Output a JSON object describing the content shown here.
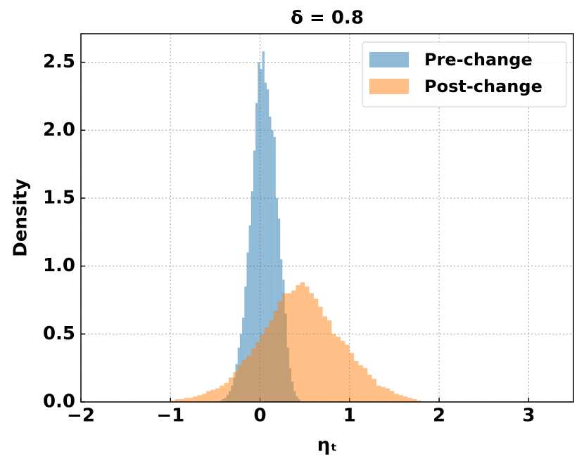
{
  "chart_data": {
    "type": "histogram",
    "title": "δ = 0.8",
    "x_label": "ηₜ",
    "y_label": "Density",
    "xlim": [
      -2,
      3.5
    ],
    "ylim": [
      0,
      2.71
    ],
    "xticks": [
      {
        "value": -2,
        "label": "−2"
      },
      {
        "value": -1,
        "label": "−1"
      },
      0,
      1,
      2,
      3
    ],
    "yticks": [
      {
        "value": 0,
        "label": "0.0"
      },
      {
        "value": 0.5,
        "label": "0.5"
      },
      {
        "value": 1,
        "label": "1.0"
      },
      {
        "value": 1.5,
        "label": "1.5"
      },
      {
        "value": 2,
        "label": "2.0"
      },
      {
        "value": 2.5,
        "label": "2.5"
      }
    ],
    "grid": true,
    "legend": "upper right",
    "series": [
      {
        "name": "Pre-change",
        "color": "#1f77b4",
        "bins": [
          -0.45,
          -0.425,
          -0.4,
          -0.375,
          -0.35,
          -0.325,
          -0.3,
          -0.275,
          -0.25,
          -0.225,
          -0.2,
          -0.175,
          -0.15,
          -0.125,
          -0.1,
          -0.075,
          -0.05,
          -0.025,
          0,
          0.025,
          0.05,
          0.075,
          0.1,
          0.125,
          0.15,
          0.175,
          0.2,
          0.225,
          0.25,
          0.275,
          0.3,
          0.325,
          0.35,
          0.375,
          0.4,
          0.425,
          0.45
        ],
        "values": [
          0.01,
          0.02,
          0.03,
          0.05,
          0.08,
          0.12,
          0.18,
          0.28,
          0.4,
          0.5,
          0.62,
          0.85,
          1.1,
          1.3,
          1.55,
          1.85,
          2.2,
          2.5,
          2.45,
          2.58,
          2.35,
          2.3,
          2.1,
          2.0,
          1.95,
          1.5,
          1.35,
          1.05,
          0.9,
          0.65,
          0.4,
          0.25,
          0.15,
          0.08,
          0.04,
          0.02
        ]
      },
      {
        "name": "Post-change",
        "color": "#ff7f0e",
        "bins": [
          -1.0,
          -0.95,
          -0.9,
          -0.85,
          -0.8,
          -0.75,
          -0.7,
          -0.65,
          -0.6,
          -0.55,
          -0.5,
          -0.45,
          -0.4,
          -0.35,
          -0.3,
          -0.25,
          -0.2,
          -0.15,
          -0.1,
          -0.05,
          0,
          0.05,
          0.1,
          0.15,
          0.2,
          0.25,
          0.3,
          0.35,
          0.4,
          0.45,
          0.5,
          0.55,
          0.6,
          0.65,
          0.7,
          0.75,
          0.8,
          0.85,
          0.9,
          0.95,
          1.0,
          1.05,
          1.1,
          1.15,
          1.2,
          1.25,
          1.3,
          1.35,
          1.4,
          1.45,
          1.5,
          1.55,
          1.6,
          1.65,
          1.7,
          1.75,
          1.8
        ],
        "values": [
          0.01,
          0.02,
          0.02,
          0.03,
          0.03,
          0.04,
          0.05,
          0.06,
          0.08,
          0.09,
          0.1,
          0.12,
          0.14,
          0.18,
          0.22,
          0.27,
          0.31,
          0.34,
          0.39,
          0.44,
          0.5,
          0.55,
          0.6,
          0.67,
          0.74,
          0.8,
          0.8,
          0.82,
          0.86,
          0.88,
          0.85,
          0.8,
          0.76,
          0.7,
          0.63,
          0.6,
          0.5,
          0.48,
          0.45,
          0.42,
          0.36,
          0.3,
          0.27,
          0.25,
          0.2,
          0.17,
          0.12,
          0.11,
          0.1,
          0.08,
          0.06,
          0.05,
          0.04,
          0.03,
          0.02,
          0.01
        ]
      }
    ]
  }
}
